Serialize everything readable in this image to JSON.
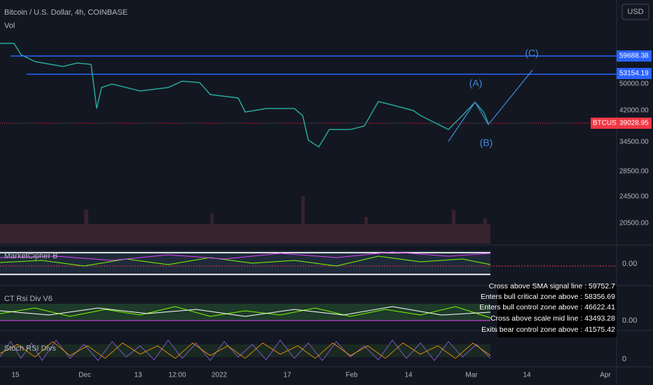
{
  "header": {
    "title": "Bitcoin / U.S. Dollar, 4h, COINBASE",
    "volume_label": "Vol",
    "currency": "USD"
  },
  "price_axis": [
    "50000.00",
    "42000.00",
    "34500.00",
    "28500.00",
    "24500.00",
    "20500.00"
  ],
  "price_tags": [
    {
      "label": "59688.38"
    },
    {
      "label": "53154.19"
    },
    {
      "symbol": "BTCUSD",
      "label": "39028.95"
    }
  ],
  "wave_labels": [
    "(A)",
    "(B)",
    "(C)"
  ],
  "indicators": [
    {
      "name": "MarketCipher B",
      "value": "0.00"
    },
    {
      "name": "CT Rsi Div V6",
      "value": "0.00"
    },
    {
      "name": "Stoch RSI Divs",
      "value": "0"
    }
  ],
  "alerts": [
    "Cross above SMA signal line : 59752.7",
    "Enters bull critical zone above : 58356.69",
    "Enters bull control zone above : 46622.41",
    "Cross above scale mid line : 43493.28",
    "Exits bear control zone above : 41575.42"
  ],
  "time_axis": [
    "15",
    "Dec",
    "13",
    "12:00",
    "2022",
    "17",
    "Feb",
    "14",
    "Mar",
    "14",
    "Apr"
  ]
}
